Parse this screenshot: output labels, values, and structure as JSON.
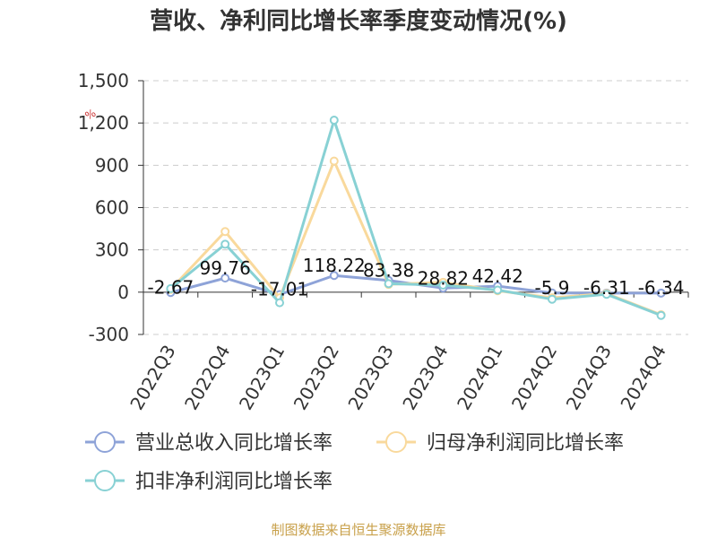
{
  "chart_data": {
    "type": "line",
    "title": "营收、净利同比增长率季度变动情况(%)",
    "unit_label": "%",
    "categories": [
      "2022Q3",
      "2022Q4",
      "2023Q1",
      "2023Q2",
      "2023Q3",
      "2023Q4",
      "2024Q1",
      "2024Q2",
      "2024Q3",
      "2024Q4"
    ],
    "yticks": [
      "1,500",
      "1,200",
      "900",
      "600",
      "300",
      "0",
      "-300"
    ],
    "ylim": [
      -300,
      1500
    ],
    "grid": true,
    "legend_position": "bottom",
    "series": [
      {
        "name": "营业总收入同比增长率",
        "color": "#8ea3d8",
        "values": [
          -2.67,
          99.76,
          -17.01,
          118.22,
          83.38,
          28.82,
          42.42,
          -5.9,
          -6.31,
          -6.34
        ],
        "labels": [
          "-2.67",
          "99.76",
          "-17.01",
          "118.22",
          "83.38",
          "28.82",
          "42.42",
          "-5.9",
          "-6.31",
          "-6.34"
        ]
      },
      {
        "name": "归母净利润同比增长率",
        "color": "#f9d99c",
        "values": [
          20,
          430,
          -40,
          930,
          55,
          70,
          10,
          -40,
          -10,
          -160
        ]
      },
      {
        "name": "扣非净利润同比增长率",
        "color": "#88d1d4",
        "values": [
          25,
          340,
          -75,
          1220,
          60,
          50,
          15,
          -50,
          -15,
          -165
        ]
      }
    ]
  },
  "source_text": "制图数据来自恒生聚源数据库"
}
